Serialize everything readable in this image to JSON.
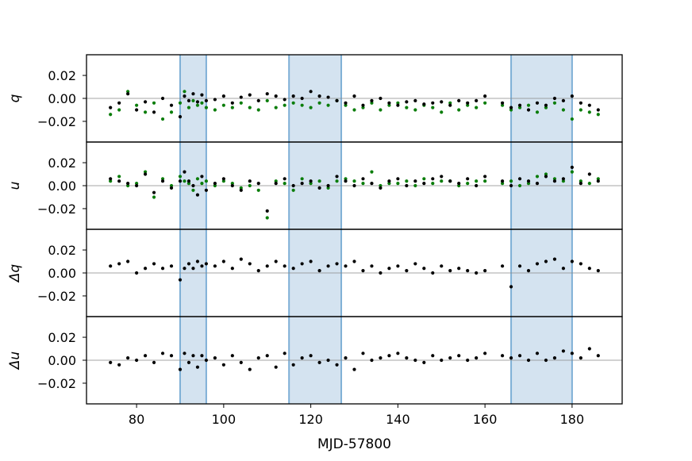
{
  "chart_data": {
    "type": "scatter",
    "xlabel": "MJD-57800",
    "x_ticks": [
      "80",
      "100",
      "120",
      "140",
      "160",
      "180"
    ],
    "x_tick_values": [
      80,
      100,
      120,
      140,
      160,
      180
    ],
    "xlim": [
      68.5,
      191.5
    ],
    "shared_ylim": [
      -0.038,
      0.038
    ],
    "y_ticks": [
      "0.02",
      "0.00",
      "−0.02"
    ],
    "y_tick_values": [
      0.02,
      0.0,
      -0.02
    ],
    "highlight_regions": [
      [
        90,
        96
      ],
      [
        115,
        127
      ],
      [
        166,
        180
      ]
    ],
    "colors": {
      "black_series": "#000000",
      "green_series": "#0a7d0a",
      "region_fill": "#cfe0ee",
      "region_edge": "#7fb0d6",
      "zero_line": "#888888"
    },
    "panels": [
      {
        "ylabel": "q",
        "series": [
          {
            "color": "black",
            "x": [
              74,
              76,
              78,
              80,
              82,
              84,
              86,
              88,
              90,
              91,
              92,
              93,
              94,
              95,
              96,
              98,
              100,
              102,
              104,
              106,
              108,
              110,
              112,
              114,
              116,
              118,
              120,
              122,
              124,
              126,
              128,
              130,
              132,
              134,
              136,
              138,
              140,
              142,
              144,
              146,
              148,
              150,
              152,
              154,
              156,
              158,
              160,
              164,
              166,
              168,
              170,
              172,
              174,
              176,
              178,
              180,
              182,
              184,
              186
            ],
            "y": [
              -0.008,
              -0.004,
              0.004,
              -0.01,
              -0.003,
              -0.012,
              0.0,
              -0.006,
              -0.016,
              0.002,
              -0.002,
              0.004,
              -0.003,
              0.003,
              -0.002,
              -0.001,
              0.002,
              -0.004,
              0.001,
              0.003,
              -0.002,
              0.004,
              0.002,
              -0.001,
              0.002,
              0.0,
              0.006,
              0.002,
              0.001,
              -0.002,
              -0.004,
              0.002,
              -0.006,
              -0.002,
              0.0,
              -0.004,
              -0.006,
              -0.003,
              -0.002,
              -0.005,
              -0.004,
              -0.003,
              -0.006,
              -0.002,
              -0.004,
              -0.002,
              0.002,
              -0.004,
              -0.008,
              -0.006,
              -0.01,
              -0.004,
              -0.006,
              0.0,
              -0.002,
              0.002,
              -0.004,
              -0.006,
              -0.01
            ]
          },
          {
            "color": "green",
            "x": [
              74,
              76,
              78,
              80,
              82,
              84,
              86,
              88,
              90,
              91,
              92,
              93,
              94,
              95,
              96,
              98,
              100,
              102,
              104,
              106,
              108,
              110,
              112,
              114,
              116,
              118,
              120,
              122,
              124,
              126,
              128,
              130,
              132,
              134,
              136,
              138,
              140,
              142,
              144,
              146,
              148,
              150,
              152,
              154,
              156,
              158,
              160,
              164,
              166,
              168,
              170,
              172,
              174,
              176,
              178,
              180,
              182,
              184,
              186
            ],
            "y": [
              -0.014,
              -0.01,
              0.006,
              -0.006,
              -0.012,
              -0.004,
              -0.018,
              -0.012,
              -0.004,
              0.006,
              -0.008,
              -0.002,
              -0.006,
              -0.004,
              -0.008,
              -0.01,
              -0.006,
              -0.008,
              -0.004,
              -0.008,
              -0.01,
              -0.002,
              -0.008,
              -0.006,
              -0.004,
              -0.006,
              -0.008,
              -0.004,
              -0.006,
              -0.002,
              -0.006,
              -0.01,
              -0.008,
              -0.004,
              -0.01,
              -0.006,
              -0.004,
              -0.008,
              -0.01,
              -0.006,
              -0.008,
              -0.012,
              -0.004,
              -0.01,
              -0.006,
              -0.008,
              -0.004,
              -0.006,
              -0.01,
              -0.008,
              -0.006,
              -0.012,
              -0.008,
              -0.004,
              -0.01,
              -0.018,
              -0.01,
              -0.012,
              -0.014
            ]
          }
        ]
      },
      {
        "ylabel": "u",
        "series": [
          {
            "color": "black",
            "x": [
              74,
              76,
              78,
              80,
              82,
              84,
              86,
              88,
              90,
              91,
              92,
              93,
              94,
              95,
              96,
              98,
              100,
              102,
              104,
              106,
              108,
              110,
              112,
              114,
              116,
              118,
              120,
              122,
              124,
              126,
              128,
              130,
              132,
              134,
              136,
              138,
              140,
              142,
              144,
              146,
              148,
              150,
              152,
              154,
              156,
              158,
              160,
              164,
              166,
              168,
              170,
              172,
              174,
              176,
              178,
              180,
              182,
              184,
              186
            ],
            "y": [
              0.006,
              0.004,
              0.002,
              0.0,
              0.01,
              -0.006,
              0.004,
              -0.002,
              0.004,
              0.012,
              0.004,
              0.0,
              -0.008,
              0.008,
              -0.004,
              0.002,
              0.006,
              0.0,
              -0.004,
              0.004,
              0.002,
              -0.022,
              0.002,
              0.006,
              0.0,
              0.002,
              0.004,
              -0.002,
              0.0,
              0.008,
              0.004,
              0.0,
              0.006,
              0.002,
              -0.002,
              0.004,
              0.006,
              0.0,
              0.004,
              0.002,
              0.006,
              0.008,
              0.004,
              0.002,
              0.006,
              0.0,
              0.008,
              0.004,
              0.0,
              0.006,
              0.004,
              0.002,
              0.008,
              0.004,
              0.006,
              0.016,
              0.002,
              0.01,
              0.004
            ]
          },
          {
            "color": "green",
            "x": [
              74,
              76,
              78,
              80,
              82,
              84,
              86,
              88,
              90,
              91,
              92,
              93,
              94,
              95,
              96,
              98,
              100,
              102,
              104,
              106,
              108,
              110,
              112,
              114,
              116,
              118,
              120,
              122,
              124,
              126,
              128,
              130,
              132,
              134,
              136,
              138,
              140,
              142,
              144,
              146,
              148,
              150,
              152,
              154,
              156,
              158,
              160,
              164,
              166,
              168,
              170,
              172,
              174,
              176,
              178,
              180,
              182,
              184,
              186
            ],
            "y": [
              0.004,
              0.008,
              0.0,
              0.002,
              0.012,
              -0.01,
              0.006,
              0.0,
              0.008,
              0.004,
              0.002,
              -0.004,
              0.006,
              0.002,
              0.004,
              0.0,
              0.004,
              0.002,
              -0.002,
              0.0,
              -0.004,
              -0.028,
              0.004,
              0.002,
              -0.004,
              0.006,
              0.002,
              0.004,
              -0.002,
              0.004,
              0.006,
              0.004,
              0.002,
              0.012,
              0.0,
              0.002,
              0.002,
              0.004,
              0.0,
              0.006,
              0.002,
              0.004,
              0.004,
              0.0,
              0.002,
              0.004,
              0.004,
              0.002,
              0.004,
              0.0,
              0.002,
              0.008,
              0.01,
              0.006,
              0.004,
              0.012,
              0.004,
              0.002,
              0.006
            ]
          }
        ]
      },
      {
        "ylabel": "Δq",
        "series": [
          {
            "color": "black",
            "x": [
              74,
              76,
              78,
              80,
              82,
              84,
              86,
              88,
              90,
              91,
              92,
              93,
              94,
              95,
              96,
              98,
              100,
              102,
              104,
              106,
              108,
              110,
              112,
              114,
              116,
              118,
              120,
              122,
              124,
              126,
              128,
              130,
              132,
              134,
              136,
              138,
              140,
              142,
              144,
              146,
              148,
              150,
              152,
              154,
              156,
              158,
              160,
              164,
              166,
              168,
              170,
              172,
              174,
              176,
              178,
              180,
              182,
              184,
              186
            ],
            "y": [
              0.006,
              0.008,
              0.01,
              0.0,
              0.004,
              0.008,
              0.004,
              0.006,
              -0.006,
              0.004,
              0.008,
              0.004,
              0.01,
              0.006,
              0.008,
              0.006,
              0.01,
              0.004,
              0.012,
              0.008,
              0.002,
              0.006,
              0.01,
              0.006,
              0.004,
              0.008,
              0.01,
              0.002,
              0.006,
              0.008,
              0.006,
              0.01,
              0.002,
              0.006,
              0.0,
              0.004,
              0.006,
              0.002,
              0.008,
              0.004,
              0.0,
              0.006,
              0.002,
              0.004,
              0.002,
              0.0,
              0.002,
              0.006,
              -0.012,
              0.006,
              0.002,
              0.008,
              0.01,
              0.012,
              0.004,
              0.01,
              0.008,
              0.004,
              0.002
            ]
          }
        ]
      },
      {
        "ylabel": "Δu",
        "series": [
          {
            "color": "black",
            "x": [
              74,
              76,
              78,
              80,
              82,
              84,
              86,
              88,
              90,
              91,
              92,
              93,
              94,
              95,
              96,
              98,
              100,
              102,
              104,
              106,
              108,
              110,
              112,
              114,
              116,
              118,
              120,
              122,
              124,
              126,
              128,
              130,
              132,
              134,
              136,
              138,
              140,
              142,
              144,
              146,
              148,
              150,
              152,
              154,
              156,
              158,
              160,
              164,
              166,
              168,
              170,
              172,
              174,
              176,
              178,
              180,
              182,
              184,
              186
            ],
            "y": [
              -0.002,
              -0.004,
              0.002,
              0.0,
              0.004,
              -0.002,
              0.006,
              0.004,
              -0.008,
              0.006,
              -0.002,
              0.004,
              -0.006,
              0.004,
              0.0,
              0.002,
              -0.004,
              0.004,
              -0.002,
              -0.008,
              0.002,
              0.004,
              -0.006,
              0.006,
              -0.004,
              0.002,
              0.004,
              -0.002,
              0.0,
              -0.004,
              0.002,
              -0.008,
              0.006,
              0.0,
              0.002,
              0.004,
              0.006,
              0.002,
              0.0,
              -0.002,
              0.004,
              0.0,
              0.002,
              0.004,
              0.0,
              0.002,
              0.006,
              0.004,
              0.002,
              0.004,
              0.0,
              0.006,
              0.0,
              0.002,
              0.008,
              0.006,
              0.002,
              0.01,
              0.004
            ]
          }
        ]
      }
    ]
  }
}
